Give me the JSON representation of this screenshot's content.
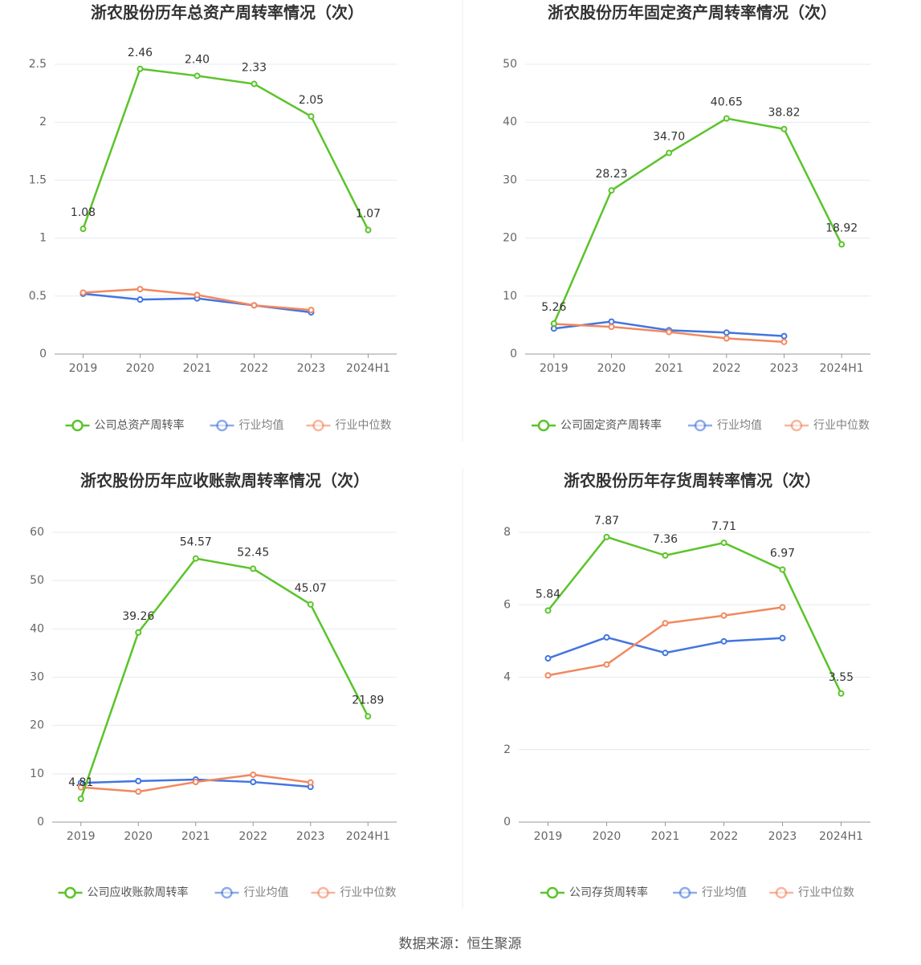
{
  "chart_data": [
    {
      "type": "line",
      "title": "浙农股份历年总资产周转率情况（次）",
      "categories": [
        "2019",
        "2020",
        "2021",
        "2022",
        "2023",
        "2024H1"
      ],
      "series": [
        {
          "name": "公司总资产周转率",
          "color": "#5ac42a",
          "values": [
            1.08,
            2.46,
            2.4,
            2.33,
            2.05,
            1.07
          ],
          "value_labels": [
            "1.08",
            "2.46",
            "2.40",
            "2.33",
            "2.05",
            "1.07"
          ]
        },
        {
          "name": "行业均值",
          "color": "#4275e0",
          "values": [
            0.52,
            0.47,
            0.48,
            0.42,
            0.36,
            null
          ]
        },
        {
          "name": "行业中位数",
          "color": "#f2875e",
          "values": [
            0.53,
            0.56,
            0.51,
            0.42,
            0.38,
            null
          ]
        }
      ],
      "ylim": [
        0,
        2.5
      ],
      "yticks": [
        0,
        0.5,
        1,
        1.5,
        2,
        2.5
      ],
      "grid": true
    },
    {
      "type": "line",
      "title": "浙农股份历年固定资产周转率情况（次）",
      "categories": [
        "2019",
        "2020",
        "2021",
        "2022",
        "2023",
        "2024H1"
      ],
      "series": [
        {
          "name": "公司固定资产周转率",
          "color": "#5ac42a",
          "values": [
            5.26,
            28.23,
            34.7,
            40.65,
            38.82,
            18.92
          ],
          "value_labels": [
            "5.26",
            "28.23",
            "34.70",
            "40.65",
            "38.82",
            "18.92"
          ]
        },
        {
          "name": "行业均值",
          "color": "#4275e0",
          "values": [
            4.4,
            5.6,
            4.1,
            3.7,
            3.1,
            null
          ]
        },
        {
          "name": "行业中位数",
          "color": "#f2875e",
          "values": [
            5.2,
            4.7,
            3.8,
            2.7,
            2.1,
            null
          ]
        }
      ],
      "ylim": [
        0,
        50
      ],
      "yticks": [
        0,
        10,
        20,
        30,
        40,
        50
      ],
      "grid": true
    },
    {
      "type": "line",
      "title": "浙农股份历年应收账款周转率情况（次）",
      "categories": [
        "2019",
        "2020",
        "2021",
        "2022",
        "2023",
        "2024H1"
      ],
      "series": [
        {
          "name": "公司应收账款周转率",
          "color": "#5ac42a",
          "values": [
            4.81,
            39.26,
            54.57,
            52.45,
            45.07,
            21.89
          ],
          "value_labels": [
            "4.81",
            "39.26",
            "54.57",
            "52.45",
            "45.07",
            "21.89"
          ]
        },
        {
          "name": "行业均值",
          "color": "#4275e0",
          "values": [
            8.1,
            8.5,
            8.8,
            8.3,
            7.3,
            null
          ]
        },
        {
          "name": "行业中位数",
          "color": "#f2875e",
          "values": [
            7.2,
            6.3,
            8.3,
            9.8,
            8.2,
            null
          ]
        }
      ],
      "ylim": [
        0,
        60
      ],
      "yticks": [
        0,
        10,
        20,
        30,
        40,
        50,
        60
      ],
      "grid": true
    },
    {
      "type": "line",
      "title": "浙农股份历年存货周转率情况（次）",
      "categories": [
        "2019",
        "2020",
        "2021",
        "2022",
        "2023",
        "2024H1"
      ],
      "series": [
        {
          "name": "公司存货周转率",
          "color": "#5ac42a",
          "values": [
            5.84,
            7.87,
            7.36,
            7.71,
            6.97,
            3.55
          ],
          "value_labels": [
            "5.84",
            "7.87",
            "7.36",
            "7.71",
            "6.97",
            "3.55"
          ]
        },
        {
          "name": "行业均值",
          "color": "#4275e0",
          "values": [
            4.52,
            5.1,
            4.67,
            4.99,
            5.08,
            null
          ]
        },
        {
          "name": "行业中位数",
          "color": "#f2875e",
          "values": [
            4.05,
            4.35,
            5.49,
            5.7,
            5.93,
            null
          ]
        }
      ],
      "ylim": [
        0,
        8
      ],
      "yticks": [
        0,
        2,
        4,
        6,
        8
      ],
      "grid": true
    }
  ],
  "source": "数据来源：恒生聚源"
}
